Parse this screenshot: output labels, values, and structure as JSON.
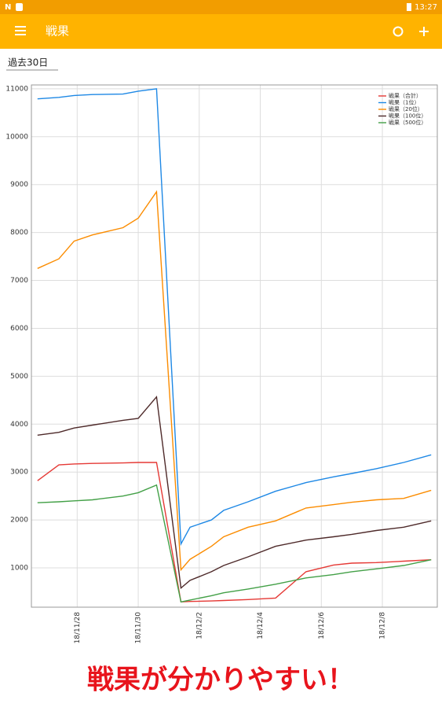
{
  "status_bar": {
    "time": "13:27"
  },
  "app_bar": {
    "title": "戦果"
  },
  "filter": {
    "label": "過去30日"
  },
  "chart_data": {
    "type": "line",
    "x": [
      26.7,
      27.4,
      27.9,
      28.5,
      29.5,
      30.0,
      30.6,
      31.4,
      31.7,
      32.4,
      32.8,
      33.6,
      34.5,
      35.5,
      36.4,
      37.0,
      37.8,
      38.7,
      39.6
    ],
    "xlim": [
      26.5,
      39.8
    ],
    "xticks": [
      {
        "value": 28,
        "label": "18/11/28"
      },
      {
        "value": 30,
        "label": "18/11/30"
      },
      {
        "value": 32,
        "label": "18/12/2"
      },
      {
        "value": 34,
        "label": "18/12/4"
      },
      {
        "value": 36,
        "label": "18/12/6"
      },
      {
        "value": 38,
        "label": "18/12/8"
      }
    ],
    "ylim": [
      180,
      11080
    ],
    "yticks": [
      1000,
      2000,
      3000,
      4000,
      5000,
      6000,
      7000,
      8000,
      9000,
      10000,
      11000
    ],
    "grid": true,
    "legend": "top-right",
    "series": [
      {
        "name": "戦果（合計）",
        "color": "#e53935",
        "values": [
          2820,
          3150,
          3170,
          3180,
          3190,
          3200,
          3200,
          290,
          300,
          310,
          320,
          340,
          370,
          920,
          1060,
          1100,
          1110,
          1140,
          1170
        ]
      },
      {
        "name": "戦果（1位）",
        "color": "#1e88e5",
        "values": [
          10790,
          10820,
          10860,
          10880,
          10890,
          10950,
          11000,
          1500,
          1850,
          2000,
          2200,
          2380,
          2600,
          2780,
          2900,
          2970,
          3070,
          3200,
          3360
        ]
      },
      {
        "name": "戦果（20位）",
        "color": "#fb8c00",
        "values": [
          7250,
          7450,
          7820,
          7950,
          8100,
          8300,
          8850,
          960,
          1180,
          1450,
          1650,
          1850,
          1980,
          2250,
          2320,
          2370,
          2420,
          2450,
          2620
        ]
      },
      {
        "name": "戦果（100位）",
        "color": "#4e2a2a",
        "values": [
          3770,
          3830,
          3920,
          3980,
          4080,
          4120,
          4570,
          580,
          740,
          920,
          1050,
          1230,
          1450,
          1580,
          1650,
          1700,
          1780,
          1850,
          1980
        ]
      },
      {
        "name": "戦果（500位）",
        "color": "#43a047",
        "values": [
          2360,
          2380,
          2400,
          2420,
          2500,
          2570,
          2730,
          290,
          330,
          420,
          480,
          560,
          660,
          790,
          860,
          920,
          980,
          1050,
          1170
        ]
      }
    ]
  },
  "caption": "戦果が分かりやすい！"
}
